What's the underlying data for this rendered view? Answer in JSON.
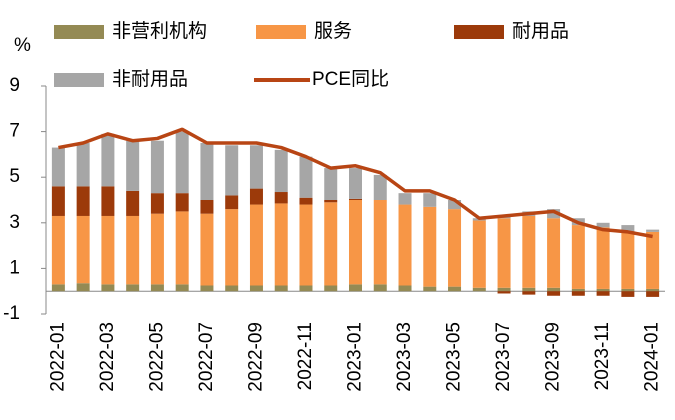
{
  "chart_data": {
    "type": "stacked_bar_line",
    "y_axis_label": "%",
    "categories": [
      "2022-01",
      null,
      "2022-03",
      null,
      "2022-05",
      null,
      "2022-07",
      null,
      "2022-09",
      null,
      "2022-11",
      null,
      "2023-01",
      null,
      "2023-03",
      null,
      "2023-05",
      null,
      "2023-07",
      null,
      "2023-09",
      null,
      "2023-11",
      null,
      "2024-01"
    ],
    "series": [
      {
        "name": "非营利机构",
        "color": "#948a54",
        "values": [
          0.3,
          0.35,
          0.3,
          0.3,
          0.3,
          0.3,
          0.25,
          0.25,
          0.25,
          0.25,
          0.25,
          0.25,
          0.3,
          0.3,
          0.25,
          0.2,
          0.2,
          0.15,
          0.15,
          0.15,
          0.15,
          0.1,
          0.1,
          0.1,
          0.1
        ]
      },
      {
        "name": "服务",
        "color": "#f79646",
        "values": [
          3.0,
          2.95,
          3.0,
          3.0,
          3.1,
          3.2,
          3.15,
          3.35,
          3.55,
          3.6,
          3.55,
          3.65,
          3.7,
          3.7,
          3.55,
          3.5,
          3.4,
          2.95,
          3.05,
          3.15,
          3.05,
          2.8,
          2.7,
          2.5,
          2.5
        ]
      },
      {
        "name": "耐用品",
        "color": "#9c3a0a",
        "values": [
          1.3,
          1.3,
          1.3,
          1.1,
          0.9,
          0.8,
          0.6,
          0.6,
          0.7,
          0.5,
          0.3,
          0.1,
          0.05,
          0,
          0,
          0,
          0,
          0,
          -0.1,
          -0.15,
          -0.2,
          -0.2,
          -0.2,
          -0.25,
          -0.25
        ]
      },
      {
        "name": "非耐用品",
        "color": "#a6a6a6",
        "values": [
          1.7,
          1.9,
          2.3,
          2.2,
          2.3,
          2.7,
          2.5,
          2.2,
          1.9,
          1.85,
          1.8,
          1.4,
          1.35,
          1.1,
          0.5,
          0.6,
          0.4,
          0.1,
          0.1,
          0.2,
          0.4,
          0.3,
          0.2,
          0.3,
          0.1
        ]
      }
    ],
    "line": {
      "name": "PCE同比",
      "color": "#b84514",
      "values": [
        6.3,
        6.5,
        6.9,
        6.6,
        6.7,
        7.1,
        6.5,
        6.5,
        6.5,
        6.3,
        5.9,
        5.4,
        5.5,
        5.2,
        4.4,
        4.4,
        4.0,
        3.2,
        3.3,
        3.4,
        3.5,
        3.0,
        2.7,
        2.6,
        2.4
      ]
    },
    "ylim": [
      -1,
      9
    ],
    "yticks": [
      -1,
      1,
      3,
      5,
      7,
      9
    ]
  }
}
